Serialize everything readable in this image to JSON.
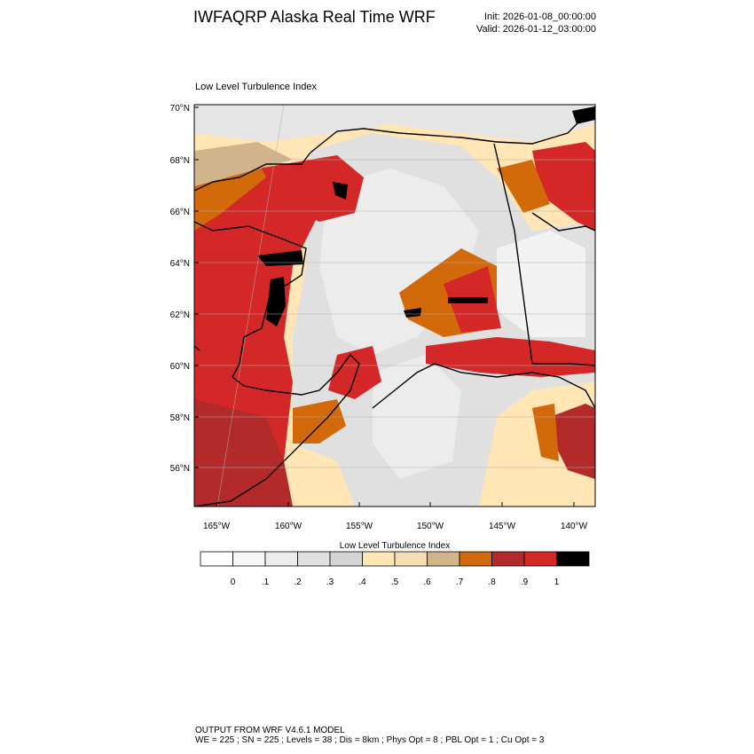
{
  "header": {
    "title": "IWFAQRP Alaska Real Time WRF",
    "init": "Init: 2026-01-08_00:00:00",
    "valid": "Valid: 2026-01-12_03:00:00"
  },
  "plot": {
    "title": "Low Level Turbulence Index",
    "lat_labels": [
      "70°N",
      "68°N",
      "66°N",
      "64°N",
      "62°N",
      "60°N",
      "58°N",
      "56°N"
    ],
    "lon_labels": [
      "165°W",
      "160°W",
      "155°W",
      "150°W",
      "145°W",
      "140°W"
    ]
  },
  "colorbar": {
    "title": "Low Level Turbulence Index",
    "labels": [
      "0",
      ".1",
      ".2",
      ".3",
      ".4",
      ".5",
      ".6",
      ".7",
      ".8",
      ".9",
      "1"
    ],
    "colors": [
      "#ffffff",
      "#f7f7f7",
      "#ececec",
      "#e0e0e0",
      "#d4d4d4",
      "#ffe6b4",
      "#f5deb3",
      "#d2b48c",
      "#d2690a",
      "#b22a2a",
      "#d42828",
      "#000000"
    ]
  },
  "footer": {
    "line1": "OUTPUT FROM WRF V4.6.1 MODEL",
    "line2": "WE = 225 ; SN = 225 ; Levels = 38 ; Dis = 8km ; Phys Opt = 8 ; PBL Opt = 1 ; Cu Opt = 3"
  }
}
